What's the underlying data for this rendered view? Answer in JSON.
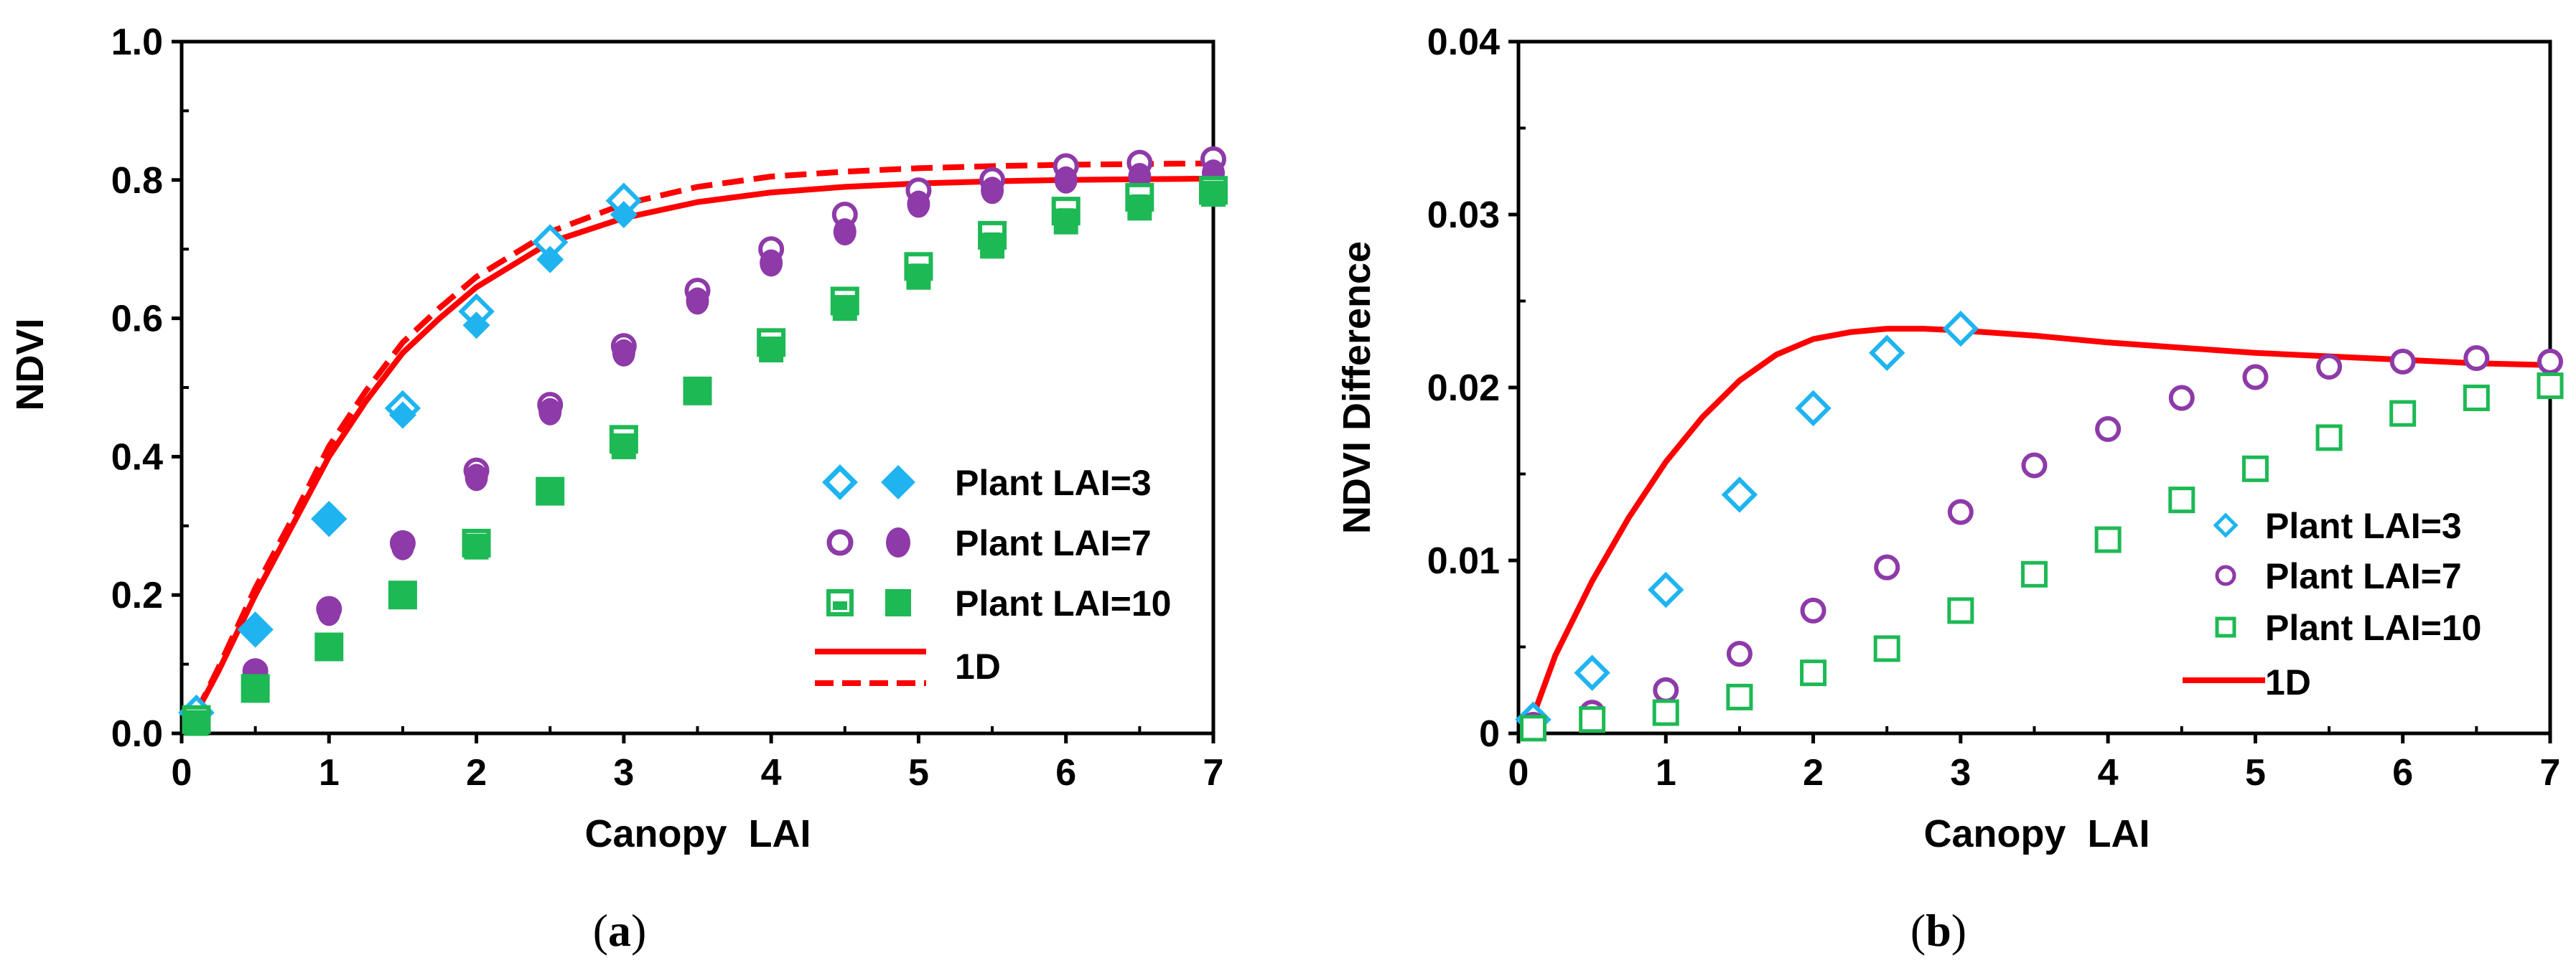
{
  "colors": {
    "blue": "#1fb4f0",
    "purple": "#8e3aa8",
    "green": "#1db954",
    "red": "#ff0000",
    "axis": "#000000"
  },
  "chart_data": [
    {
      "type": "scatter",
      "caption_open": "(",
      "caption_letter": "a",
      "caption_close": ")",
      "xlabel": "Canopy  LAI",
      "ylabel": "NDVI",
      "xlim": [
        0,
        7
      ],
      "ylim": [
        0,
        1.0
      ],
      "xticks": [
        0,
        1,
        2,
        3,
        4,
        5,
        6,
        7
      ],
      "yticks": [
        0,
        0.2,
        0.4,
        0.6,
        0.8,
        1.0
      ],
      "xtick_labels": [
        "0",
        "1",
        "2",
        "3",
        "4",
        "5",
        "6",
        "7"
      ],
      "ytick_labels": [
        "0.0",
        "0.2",
        "0.4",
        "0.6",
        "0.8",
        "1.0"
      ],
      "legend_position": "lower-right",
      "legend": [
        {
          "label": "Plant LAI=3",
          "color": "blue",
          "open_marker": "diamond",
          "filled_marker": "diamond"
        },
        {
          "label": "Plant LAI=7",
          "color": "purple",
          "open_marker": "circle-open",
          "filled_marker": "circle"
        },
        {
          "label": "Plant LAI=10",
          "color": "green",
          "open_marker": "square-open-inner",
          "filled_marker": "square"
        },
        {
          "label": "1D",
          "color": "red",
          "open_marker": "line-solid",
          "filled_marker": "line-dashed"
        }
      ],
      "series": [
        {
          "name": "Plant LAI=3 (open)",
          "marker": "diamond-open",
          "color": "blue",
          "x": [
            0.1,
            0.5,
            1,
            1.5,
            2,
            2.5,
            3
          ],
          "y": [
            0.03,
            0.15,
            0.31,
            0.47,
            0.61,
            0.71,
            0.77
          ]
        },
        {
          "name": "Plant LAI=3 (filled)",
          "marker": "diamond-filled",
          "color": "blue",
          "x": [
            0.1,
            0.5,
            1,
            1.5,
            2,
            2.5,
            3
          ],
          "y": [
            0.02,
            0.15,
            0.31,
            0.46,
            0.59,
            0.685,
            0.75
          ]
        },
        {
          "name": "Plant LAI=7 (open)",
          "marker": "circle-open",
          "color": "purple",
          "x": [
            0.1,
            0.5,
            1,
            1.5,
            2,
            2.5,
            3,
            3.5,
            4,
            4.5,
            5,
            5.5,
            6,
            6.5,
            7
          ],
          "y": [
            0.02,
            0.09,
            0.18,
            0.275,
            0.38,
            0.475,
            0.56,
            0.64,
            0.7,
            0.75,
            0.785,
            0.8,
            0.82,
            0.825,
            0.83
          ]
        },
        {
          "name": "Plant LAI=7 (filled)",
          "marker": "circle-filled",
          "color": "purple",
          "x": [
            0.1,
            0.5,
            1,
            1.5,
            2,
            2.5,
            3,
            3.5,
            4,
            4.5,
            5,
            5.5,
            6,
            6.5,
            7
          ],
          "y": [
            0.02,
            0.085,
            0.175,
            0.27,
            0.37,
            0.465,
            0.55,
            0.625,
            0.68,
            0.725,
            0.765,
            0.785,
            0.8,
            0.805,
            0.81
          ]
        },
        {
          "name": "Plant LAI=10 (open)",
          "marker": "square-open-inner",
          "color": "green",
          "x": [
            0.1,
            0.5,
            1,
            1.5,
            2,
            2.5,
            3,
            3.5,
            4,
            4.5,
            5,
            5.5,
            6,
            6.5,
            7
          ],
          "y": [
            0.02,
            0.065,
            0.125,
            0.2,
            0.275,
            0.35,
            0.425,
            0.495,
            0.565,
            0.625,
            0.675,
            0.72,
            0.755,
            0.775,
            0.785
          ]
        },
        {
          "name": "Plant LAI=10 (filled)",
          "marker": "square-filled",
          "color": "green",
          "x": [
            0.1,
            0.5,
            1,
            1.5,
            2,
            2.5,
            3,
            3.5,
            4,
            4.5,
            5,
            5.5,
            6,
            6.5,
            7
          ],
          "y": [
            0.015,
            0.063,
            0.125,
            0.2,
            0.27,
            0.35,
            0.415,
            0.495,
            0.555,
            0.615,
            0.66,
            0.705,
            0.74,
            0.76,
            0.78
          ]
        },
        {
          "name": "1D (solid)",
          "marker": "line-solid",
          "color": "red",
          "x": [
            0.1,
            0.25,
            0.5,
            0.75,
            1,
            1.25,
            1.5,
            1.75,
            2,
            2.5,
            3,
            3.5,
            4,
            4.5,
            5,
            5.5,
            6,
            6.5,
            7
          ],
          "y": [
            0.03,
            0.09,
            0.2,
            0.3,
            0.4,
            0.48,
            0.55,
            0.6,
            0.645,
            0.71,
            0.745,
            0.768,
            0.782,
            0.79,
            0.795,
            0.798,
            0.8,
            0.801,
            0.802
          ]
        },
        {
          "name": "1D (dashed)",
          "marker": "line-dashed",
          "color": "red",
          "x": [
            0.1,
            0.25,
            0.5,
            0.75,
            1,
            1.25,
            1.5,
            1.75,
            2,
            2.5,
            3,
            3.5,
            4,
            4.5,
            5,
            5.5,
            6,
            6.5,
            7
          ],
          "y": [
            0.03,
            0.095,
            0.21,
            0.31,
            0.415,
            0.495,
            0.565,
            0.615,
            0.66,
            0.725,
            0.765,
            0.79,
            0.805,
            0.812,
            0.817,
            0.82,
            0.822,
            0.823,
            0.824
          ]
        }
      ]
    },
    {
      "type": "scatter",
      "caption_open": "(",
      "caption_letter": "b",
      "caption_close": ")",
      "xlabel": "Canopy  LAI",
      "ylabel": "NDVI Difference",
      "xlim": [
        0,
        7
      ],
      "ylim": [
        0,
        0.04
      ],
      "xticks": [
        0,
        1,
        2,
        3,
        4,
        5,
        6,
        7
      ],
      "yticks": [
        0,
        0.01,
        0.02,
        0.03,
        0.04
      ],
      "xtick_labels": [
        "0",
        "1",
        "2",
        "3",
        "4",
        "5",
        "6",
        "7"
      ],
      "ytick_labels": [
        "0",
        "0.01",
        "0.02",
        "0.03",
        "0.04"
      ],
      "legend_position": "lower-right",
      "legend": [
        {
          "label": "Plant LAI=3",
          "color": "blue",
          "marker": "diamond-open"
        },
        {
          "label": "Plant LAI=7",
          "color": "purple",
          "marker": "circle-open"
        },
        {
          "label": "Plant LAI=10",
          "color": "green",
          "marker": "square-open"
        },
        {
          "label": "1D",
          "color": "red",
          "marker": "line-solid"
        }
      ],
      "series": [
        {
          "name": "Plant LAI=3",
          "marker": "diamond-open",
          "color": "blue",
          "x": [
            0.1,
            0.5,
            1,
            1.5,
            2,
            2.5,
            3
          ],
          "y": [
            0.0008,
            0.0035,
            0.0083,
            0.0138,
            0.0188,
            0.022,
            0.0234
          ]
        },
        {
          "name": "Plant LAI=7",
          "marker": "circle-open",
          "color": "purple",
          "x": [
            0.1,
            0.5,
            1,
            1.5,
            2,
            2.5,
            3,
            3.5,
            4,
            4.5,
            5,
            5.5,
            6,
            6.5,
            7
          ],
          "y": [
            0.0005,
            0.0012,
            0.0025,
            0.0046,
            0.0071,
            0.0096,
            0.0128,
            0.0155,
            0.0176,
            0.0194,
            0.0206,
            0.0212,
            0.0215,
            0.0217,
            0.0215
          ]
        },
        {
          "name": "Plant LAI=10",
          "marker": "square-open",
          "color": "green",
          "x": [
            0.1,
            0.5,
            1,
            1.5,
            2,
            2.5,
            3,
            3.5,
            4,
            4.5,
            5,
            5.5,
            6,
            6.5,
            7
          ],
          "y": [
            0.0003,
            0.0008,
            0.0012,
            0.0021,
            0.0035,
            0.0049,
            0.0071,
            0.0092,
            0.0112,
            0.0135,
            0.0153,
            0.0171,
            0.0185,
            0.0194,
            0.0201
          ]
        },
        {
          "name": "1D",
          "marker": "line-solid",
          "color": "red",
          "x": [
            0.1,
            0.25,
            0.5,
            0.75,
            1,
            1.25,
            1.5,
            1.75,
            2,
            2.25,
            2.5,
            2.75,
            3,
            3.5,
            4,
            4.5,
            5,
            5.5,
            6,
            6.5,
            7
          ],
          "y": [
            0.001,
            0.0045,
            0.0088,
            0.0125,
            0.0157,
            0.0183,
            0.0204,
            0.0219,
            0.0228,
            0.0232,
            0.0234,
            0.0234,
            0.0233,
            0.023,
            0.0226,
            0.0223,
            0.022,
            0.0218,
            0.0216,
            0.0214,
            0.0213
          ]
        }
      ]
    }
  ]
}
